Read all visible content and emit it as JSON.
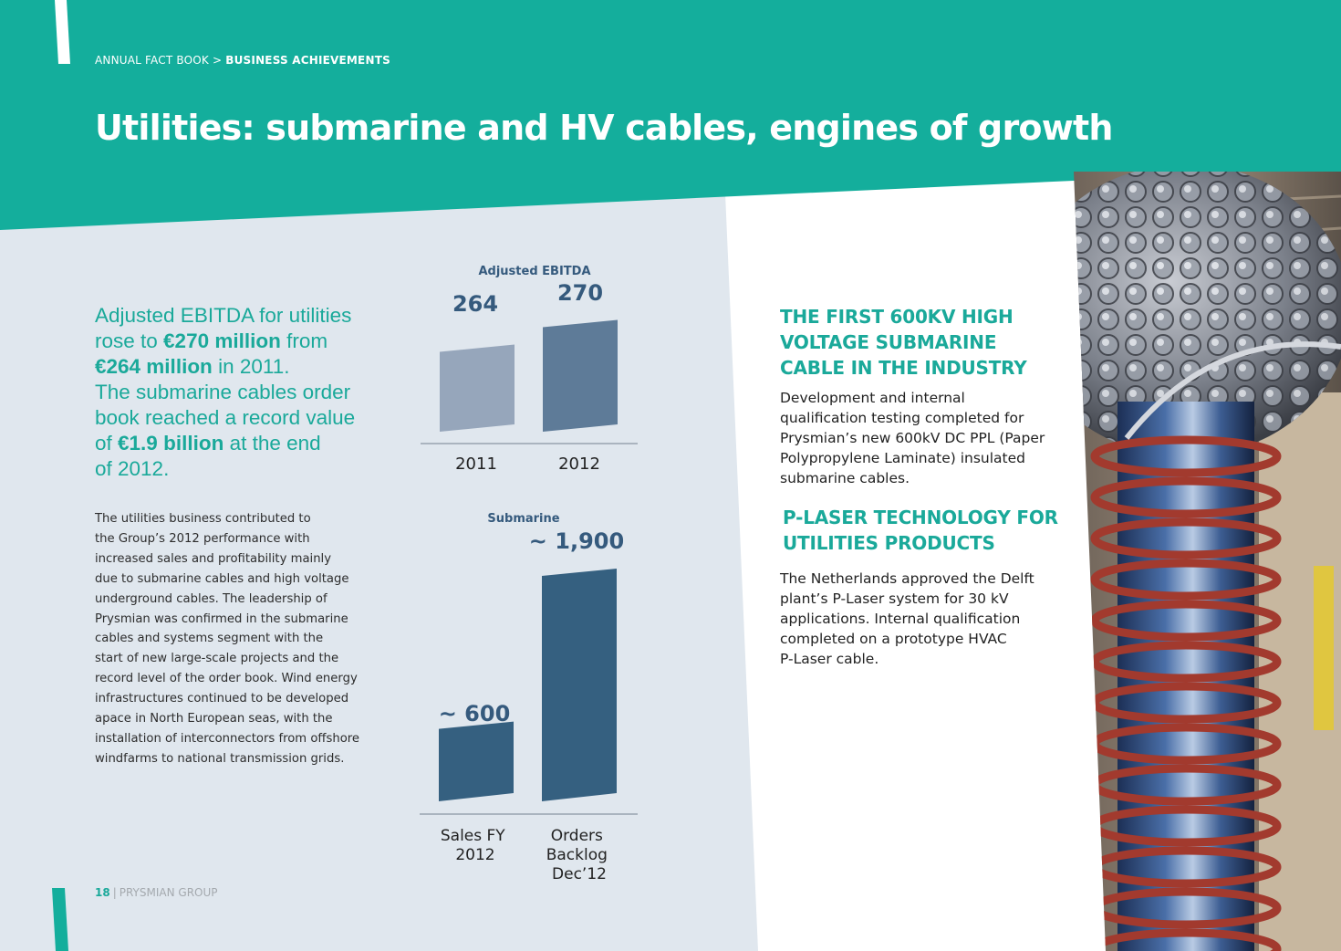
{
  "breadcrumb": {
    "section": "ANNUAL FACT BOOK",
    "separator": ">",
    "page": "BUSINESS ACHIEVEMENTS"
  },
  "title": "Utilities: submarine and HV cables, engines of growth",
  "lead": {
    "line1": "Adjusted EBITDA for utilities",
    "line2_pre": "rose to ",
    "line2_bold": "€270 million",
    "line2_post": " from",
    "line3_bold": "€264 million",
    "line3_post": " in 2011.",
    "line4": "The submarine cables order",
    "line5": "book reached a record value",
    "line6_pre": "of ",
    "line6_bold": "€1.9 billion",
    "line6_post": " at the end",
    "line7": "of 2012."
  },
  "body_lines": [
    "The utilities business contributed to",
    "the Group’s 2012 performance with",
    "increased sales and profitability mainly",
    "due to submarine cables and high voltage",
    "underground cables. The leadership of",
    "Prysmian was confirmed in the submarine",
    "cables and systems segment with the",
    "start of new large-scale projects and the",
    "record level of the order book. Wind energy",
    "infrastructures continued to be developed",
    "apace in North European seas, with the",
    "installation of interconnectors from offshore",
    "windfarms to national transmission grids."
  ],
  "chart_data": [
    {
      "type": "bar",
      "title": "Adjusted EBITDA",
      "categories": [
        "2011",
        "2012"
      ],
      "values": [
        264,
        270
      ],
      "value_labels": [
        "264",
        "270"
      ],
      "colors": [
        "#96a6bb",
        "#5e7b98"
      ]
    },
    {
      "type": "bar",
      "title": "Submarine",
      "categories": [
        "Sales FY 2012",
        "Orders Backlog Dec’12"
      ],
      "category_lines": [
        [
          "Sales FY",
          "2012"
        ],
        [
          "Orders",
          "Backlog",
          "Dec’12"
        ]
      ],
      "values": [
        600,
        1900
      ],
      "value_labels": [
        "~ 600",
        "~ 1,900"
      ],
      "colors": [
        "#356080",
        "#356080"
      ]
    }
  ],
  "right": {
    "heading1_lines": [
      "THE FIRST 600KV HIGH",
      "VOLTAGE SUBMARINE",
      "CABLE IN THE INDUSTRY"
    ],
    "body1_lines": [
      "Development and internal",
      "qualification testing completed for",
      "Prysmian’s new 600kV DC PPL (Paper",
      "Polypropylene Laminate) insulated",
      "submarine cables."
    ],
    "heading2_lines": [
      "P-LASER TECHNOLOGY FOR",
      "UTILITIES PRODUCTS"
    ],
    "body2_lines": [
      "The Netherlands approved the Delft",
      "plant’s P-Laser system for 30 kV",
      "applications. Internal qualification",
      "completed on a prototype HVAC",
      "P-Laser cable."
    ]
  },
  "footer": {
    "page_number": "18",
    "separator": "|",
    "company": "PRYSMIAN GROUP"
  },
  "colors": {
    "teal": "#14ae9c",
    "panel": "#e0e7ee",
    "text_teal": "#1aa99a",
    "bar_navy": "#356080"
  }
}
